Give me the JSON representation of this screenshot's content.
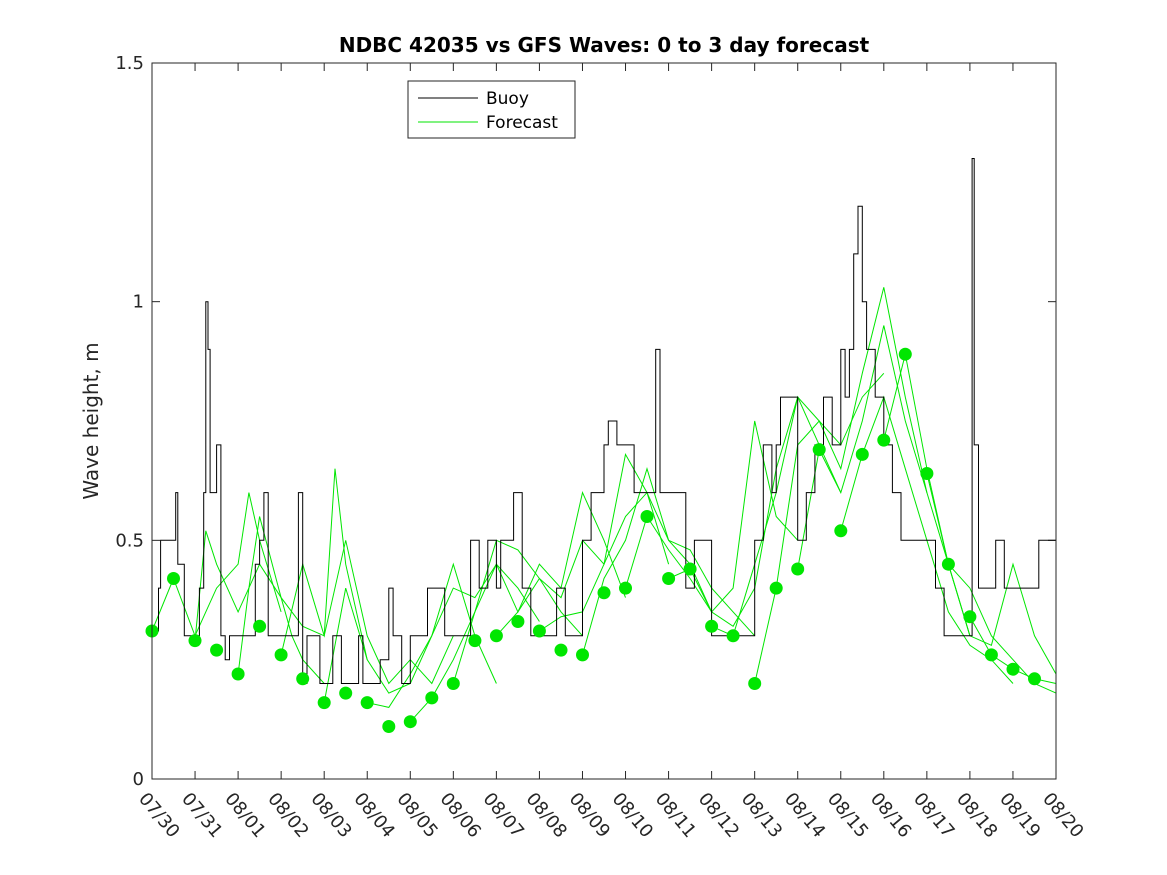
{
  "chart_data": {
    "type": "line",
    "title": "NDBC 42035 vs GFS Waves: 0 to 3 day forecast",
    "xlabel": "",
    "ylabel": "Wave height, m",
    "ylim": [
      0,
      1.5
    ],
    "yticks": [
      0,
      0.5,
      1,
      1.5
    ],
    "ytick_labels": [
      "0",
      "0.5",
      "1",
      "1.5"
    ],
    "xlim": [
      0,
      21
    ],
    "xtick_labels": [
      "07/30",
      "07/31",
      "08/01",
      "08/02",
      "08/03",
      "08/04",
      "08/05",
      "08/06",
      "08/07",
      "08/08",
      "08/09",
      "08/10",
      "08/11",
      "08/12",
      "08/13",
      "08/14",
      "08/15",
      "08/16",
      "08/17",
      "08/18",
      "08/19",
      "08/20"
    ],
    "legend": {
      "position": "top-left",
      "entries": [
        "Buoy",
        "Forecast"
      ]
    },
    "colors": {
      "buoy": "#000000",
      "forecast": "#00e600",
      "axis": "#262626"
    },
    "series": [
      {
        "name": "Buoy",
        "x": [
          0,
          0.15,
          0.2,
          0.5,
          0.55,
          0.6,
          0.75,
          0.85,
          1.0,
          1.1,
          1.2,
          1.25,
          1.3,
          1.35,
          1.45,
          1.5,
          1.6,
          1.7,
          1.8,
          1.9,
          2.0,
          2.2,
          2.4,
          2.5,
          2.6,
          2.7,
          2.8,
          2.9,
          3.0,
          3.2,
          3.4,
          3.5,
          3.6,
          3.8,
          3.9,
          4.0,
          4.2,
          4.4,
          4.6,
          4.8,
          4.9,
          5.0,
          5.1,
          5.3,
          5.5,
          5.6,
          5.8,
          6.0,
          6.2,
          6.4,
          6.6,
          6.8,
          7.0,
          7.2,
          7.4,
          7.6,
          7.8,
          8.0,
          8.1,
          8.2,
          8.4,
          8.6,
          8.8,
          9.0,
          9.2,
          9.4,
          9.6,
          9.8,
          10.0,
          10.2,
          10.4,
          10.5,
          10.6,
          10.8,
          11.0,
          11.2,
          11.3,
          11.4,
          11.5,
          11.6,
          11.7,
          11.8,
          11.9,
          12.0,
          12.2,
          12.4,
          12.6,
          12.8,
          13.0,
          13.2,
          13.4,
          13.6,
          13.8,
          14.0,
          14.2,
          14.4,
          14.5,
          14.6,
          14.8,
          15.0,
          15.2,
          15.4,
          15.6,
          15.8,
          16.0,
          16.1,
          16.2,
          16.3,
          16.4,
          16.5,
          16.6,
          16.8,
          17.0,
          17.2,
          17.4,
          17.6,
          17.8,
          18.0,
          18.2,
          18.4,
          18.6,
          18.8,
          19.0,
          19.05,
          19.1,
          19.2,
          19.4,
          19.6,
          19.8,
          20.0,
          20.2,
          20.4,
          20.6,
          20.8,
          21.0
        ],
        "values": [
          0.31,
          0.4,
          0.5,
          0.5,
          0.6,
          0.45,
          0.3,
          0.3,
          0.3,
          0.4,
          0.6,
          1.0,
          0.9,
          0.6,
          0.6,
          0.7,
          0.3,
          0.25,
          0.3,
          0.3,
          0.3,
          0.3,
          0.45,
          0.5,
          0.6,
          0.3,
          0.3,
          0.3,
          0.3,
          0.3,
          0.6,
          0.2,
          0.3,
          0.3,
          0.2,
          0.2,
          0.3,
          0.2,
          0.2,
          0.3,
          0.2,
          0.2,
          0.2,
          0.25,
          0.4,
          0.3,
          0.2,
          0.3,
          0.3,
          0.4,
          0.4,
          0.3,
          0.3,
          0.3,
          0.5,
          0.4,
          0.5,
          0.4,
          0.5,
          0.5,
          0.6,
          0.4,
          0.3,
          0.3,
          0.3,
          0.4,
          0.3,
          0.3,
          0.5,
          0.6,
          0.6,
          0.7,
          0.75,
          0.7,
          0.7,
          0.6,
          0.6,
          0.6,
          0.6,
          0.6,
          0.9,
          0.6,
          0.6,
          0.6,
          0.6,
          0.4,
          0.5,
          0.5,
          0.3,
          0.3,
          0.3,
          0.3,
          0.3,
          0.5,
          0.7,
          0.6,
          0.7,
          0.8,
          0.8,
          0.5,
          0.6,
          0.7,
          0.8,
          0.7,
          0.9,
          0.8,
          0.9,
          1.1,
          1.2,
          1.0,
          0.9,
          0.8,
          0.7,
          0.6,
          0.5,
          0.5,
          0.5,
          0.5,
          0.4,
          0.3,
          0.3,
          0.3,
          0.3,
          1.3,
          0.7,
          0.4,
          0.4,
          0.5,
          0.4,
          0.4,
          0.4,
          0.4,
          0.5,
          0.5,
          0.5
        ]
      },
      {
        "name": "Forecast",
        "markers": {
          "x": [
            0,
            0.5,
            1,
            1.5,
            2,
            2.5,
            3,
            3.5,
            4,
            4.5,
            5,
            5.5,
            6,
            6.5,
            7,
            7.5,
            8,
            8.5,
            9,
            9.5,
            10,
            10.5,
            11,
            11.5,
            12,
            12.5,
            13,
            13.5,
            14,
            14.5,
            15,
            15.5,
            16,
            16.5,
            17,
            17.5,
            18,
            18.5,
            19,
            19.5,
            20,
            20.5
          ],
          "values": [
            0.31,
            0.42,
            0.29,
            0.27,
            0.22,
            0.32,
            0.26,
            0.21,
            0.16,
            0.18,
            0.16,
            0.11,
            0.12,
            0.17,
            0.2,
            0.29,
            0.3,
            0.33,
            0.31,
            0.27,
            0.26,
            0.39,
            0.4,
            0.55,
            0.42,
            0.44,
            0.32,
            0.3,
            0.2,
            0.4,
            0.44,
            0.69,
            0.52,
            0.68,
            0.71,
            0.89,
            0.64,
            0.45,
            0.34,
            0.26,
            0.23,
            0.21
          ]
        },
        "runs": [
          {
            "x": [
              0,
              0.5,
              1,
              1.25,
              1.5,
              2,
              2.25,
              2.5,
              3
            ],
            "values": [
              0.31,
              0.42,
              0.3,
              0.35,
              0.4,
              0.45,
              0.6,
              0.5,
              0.35
            ]
          },
          {
            "x": [
              1,
              1.25,
              1.5,
              2,
              2.5,
              3,
              3.25,
              3.5,
              4
            ],
            "values": [
              0.29,
              0.52,
              0.45,
              0.35,
              0.45,
              0.38,
              0.3,
              0.25,
              0.2
            ]
          },
          {
            "x": [
              2,
              2.25,
              2.5,
              3,
              3.5,
              4,
              4.25,
              4.5,
              5
            ],
            "values": [
              0.22,
              0.4,
              0.55,
              0.38,
              0.32,
              0.3,
              0.65,
              0.45,
              0.25
            ]
          },
          {
            "x": [
              3,
              3.5,
              4,
              4.5,
              5,
              5.5,
              6,
              6.5,
              7
            ],
            "values": [
              0.26,
              0.45,
              0.3,
              0.5,
              0.3,
              0.2,
              0.25,
              0.2,
              0.3
            ]
          },
          {
            "x": [
              4,
              4.5,
              5,
              5.5,
              6,
              6.5,
              7,
              7.5,
              8
            ],
            "values": [
              0.16,
              0.4,
              0.25,
              0.18,
              0.2,
              0.3,
              0.45,
              0.3,
              0.2
            ]
          },
          {
            "x": [
              5,
              5.5,
              6,
              6.5,
              7,
              7.5,
              8,
              8.5,
              9
            ],
            "values": [
              0.16,
              0.15,
              0.22,
              0.3,
              0.4,
              0.38,
              0.45,
              0.4,
              0.33
            ]
          },
          {
            "x": [
              6,
              6.5,
              7,
              7.5,
              8,
              8.5,
              9,
              9.5,
              10
            ],
            "values": [
              0.12,
              0.17,
              0.25,
              0.35,
              0.5,
              0.48,
              0.42,
              0.35,
              0.3
            ]
          },
          {
            "x": [
              7,
              7.5,
              8,
              8.5,
              9,
              9.5,
              10,
              10.5,
              11
            ],
            "values": [
              0.2,
              0.35,
              0.45,
              0.35,
              0.45,
              0.4,
              0.6,
              0.5,
              0.38
            ]
          },
          {
            "x": [
              8,
              8.5,
              9,
              9.5,
              10,
              10.5,
              11,
              11.5,
              12
            ],
            "values": [
              0.3,
              0.35,
              0.42,
              0.38,
              0.5,
              0.45,
              0.68,
              0.6,
              0.45
            ]
          },
          {
            "x": [
              9,
              9.5,
              10,
              10.5,
              11,
              11.5,
              12,
              12.5,
              13
            ],
            "values": [
              0.31,
              0.34,
              0.35,
              0.45,
              0.55,
              0.6,
              0.5,
              0.45,
              0.35
            ]
          },
          {
            "x": [
              10,
              10.5,
              11,
              11.5,
              12,
              12.5,
              13,
              13.5,
              14
            ],
            "values": [
              0.26,
              0.42,
              0.5,
              0.65,
              0.5,
              0.48,
              0.4,
              0.35,
              0.3
            ]
          },
          {
            "x": [
              11,
              11.5,
              12,
              12.5,
              13,
              13.5,
              14,
              14.5,
              15
            ],
            "values": [
              0.4,
              0.55,
              0.48,
              0.42,
              0.35,
              0.4,
              0.75,
              0.55,
              0.5
            ]
          },
          {
            "x": [
              12,
              12.5,
              13,
              13.5,
              14,
              14.5,
              15,
              15.5,
              16
            ],
            "values": [
              0.42,
              0.44,
              0.35,
              0.32,
              0.4,
              0.65,
              0.8,
              0.7,
              0.6
            ]
          },
          {
            "x": [
              13,
              13.5,
              14,
              14.5,
              15,
              15.5,
              16,
              16.5,
              17
            ],
            "values": [
              0.32,
              0.3,
              0.45,
              0.6,
              0.8,
              0.75,
              0.7,
              0.8,
              0.85
            ]
          },
          {
            "x": [
              14,
              14.5,
              15,
              15.5,
              16,
              16.5,
              17,
              17.5,
              18
            ],
            "values": [
              0.2,
              0.4,
              0.7,
              0.75,
              0.65,
              0.85,
              1.03,
              0.8,
              0.6
            ]
          },
          {
            "x": [
              15,
              15.5,
              16,
              16.5,
              17,
              17.5,
              18,
              18.5,
              19
            ],
            "values": [
              0.44,
              0.69,
              0.6,
              0.75,
              0.95,
              0.75,
              0.6,
              0.45,
              0.3
            ]
          },
          {
            "x": [
              16,
              16.5,
              17,
              17.5,
              18,
              18.5,
              19,
              19.5,
              20
            ],
            "values": [
              0.52,
              0.68,
              0.8,
              0.65,
              0.5,
              0.35,
              0.28,
              0.25,
              0.2
            ]
          },
          {
            "x": [
              17,
              17.5,
              18,
              18.5,
              19,
              19.5,
              20,
              20.5,
              21
            ],
            "values": [
              0.71,
              0.89,
              0.65,
              0.45,
              0.3,
              0.28,
              0.45,
              0.3,
              0.22
            ]
          },
          {
            "x": [
              18,
              18.5,
              19,
              19.5,
              20,
              20.5,
              21
            ],
            "values": [
              0.64,
              0.45,
              0.4,
              0.3,
              0.25,
              0.2,
              0.18
            ]
          },
          {
            "x": [
              19,
              19.5,
              20,
              20.5,
              21
            ],
            "values": [
              0.34,
              0.26,
              0.23,
              0.21,
              0.2
            ]
          }
        ]
      }
    ]
  }
}
